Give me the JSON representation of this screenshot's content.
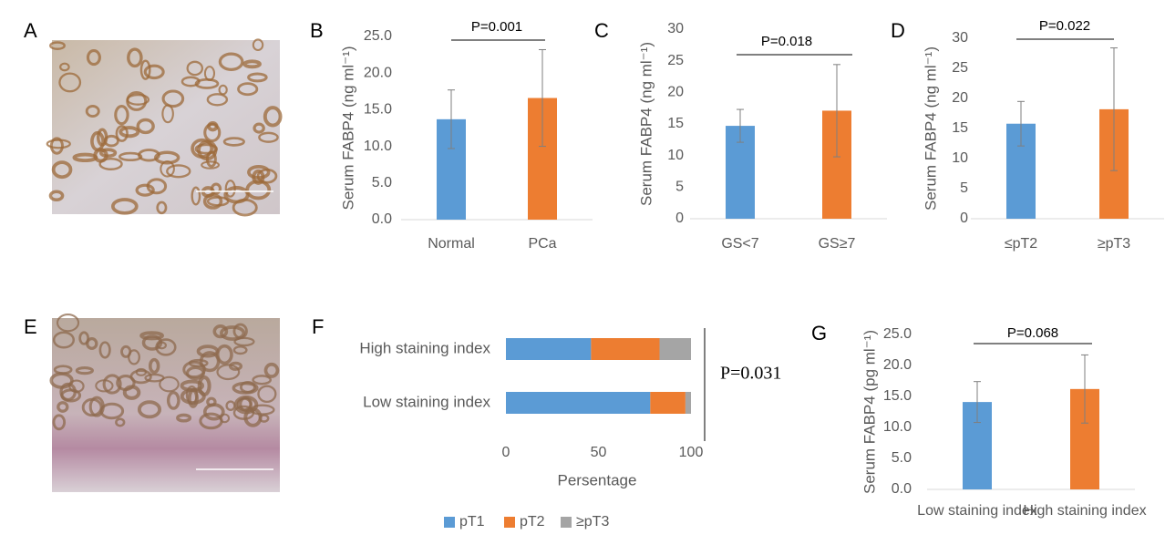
{
  "images": [
    {
      "label": "A"
    },
    {
      "label": "E"
    }
  ],
  "chart_data": [
    {
      "type": "bar",
      "panel": "B",
      "y_label": "Serum FABP4 (ng ml⁻¹)",
      "annotation": "P=0.001",
      "categories": [
        "Normal",
        "PCa"
      ],
      "values": [
        13.7,
        16.6
      ],
      "errors": [
        4.0,
        6.6
      ],
      "colors": [
        "#5b9bd5",
        "#ed7d31"
      ],
      "ylim": [
        0,
        25
      ],
      "yticks": [
        {
          "value": 0,
          "label": "0.0"
        },
        {
          "value": 5,
          "label": "5.0"
        },
        {
          "value": 10,
          "label": "10.0"
        },
        {
          "value": 15,
          "label": "15.0"
        },
        {
          "value": 20,
          "label": "20.0"
        },
        {
          "value": 25,
          "label": "25.0"
        }
      ]
    },
    {
      "type": "bar",
      "panel": "C",
      "y_label": "Serum FABP4 (ng ml⁻¹)",
      "annotation": "P=0.018",
      "categories": [
        "GS<7",
        "GS≥7"
      ],
      "values": [
        14.7,
        17.1
      ],
      "errors": [
        2.6,
        7.3
      ],
      "colors": [
        "#5b9bd5",
        "#ed7d31"
      ],
      "ylim": [
        0,
        30
      ],
      "yticks": [
        0,
        5,
        10,
        15,
        20,
        25,
        30
      ]
    },
    {
      "type": "bar",
      "panel": "D",
      "y_label": "Serum FABP4 (ng ml⁻¹)",
      "annotation": "P=0.022",
      "categories": [
        "≤pT2",
        "≥pT3"
      ],
      "values": [
        15.8,
        18.2
      ],
      "errors": [
        3.7,
        10.2
      ],
      "colors": [
        "#5b9bd5",
        "#ed7d31"
      ],
      "ylim": [
        0,
        30
      ],
      "yticks": [
        0,
        5,
        10,
        15,
        20,
        25,
        30
      ]
    },
    {
      "type": "bar",
      "orientation": "horizontal",
      "stacked": true,
      "panel": "F",
      "x_label": "Persentage",
      "annotation": "P=0.031",
      "categories": [
        "High staining index",
        "Low staining index"
      ],
      "series": [
        {
          "name": "pT1",
          "color": "#5b9bd5",
          "values": [
            46,
            78
          ]
        },
        {
          "name": "pT2",
          "color": "#ed7d31",
          "values": [
            37,
            19
          ]
        },
        {
          "name": "≥pT3",
          "color": "#a5a5a5",
          "values": [
            17,
            3
          ]
        }
      ],
      "xlim": [
        0,
        100
      ],
      "xticks": [
        0,
        50,
        100
      ],
      "legend": "bottom"
    },
    {
      "type": "bar",
      "panel": "G",
      "y_label": "Serum FABP4 (pg ml⁻¹)",
      "annotation": "P=0.068",
      "categories": [
        "Low staining index",
        "High staining index"
      ],
      "values": [
        14.1,
        16.2
      ],
      "errors": [
        3.3,
        5.5
      ],
      "colors": [
        "#5b9bd5",
        "#ed7d31"
      ],
      "ylim": [
        0,
        25
      ],
      "yticks": [
        {
          "value": 0,
          "label": "0.0"
        },
        {
          "value": 5,
          "label": "5.0"
        },
        {
          "value": 10,
          "label": "10.0"
        },
        {
          "value": 15,
          "label": "15.0"
        },
        {
          "value": 20,
          "label": "20.0"
        },
        {
          "value": 25,
          "label": "25.0"
        }
      ]
    }
  ]
}
